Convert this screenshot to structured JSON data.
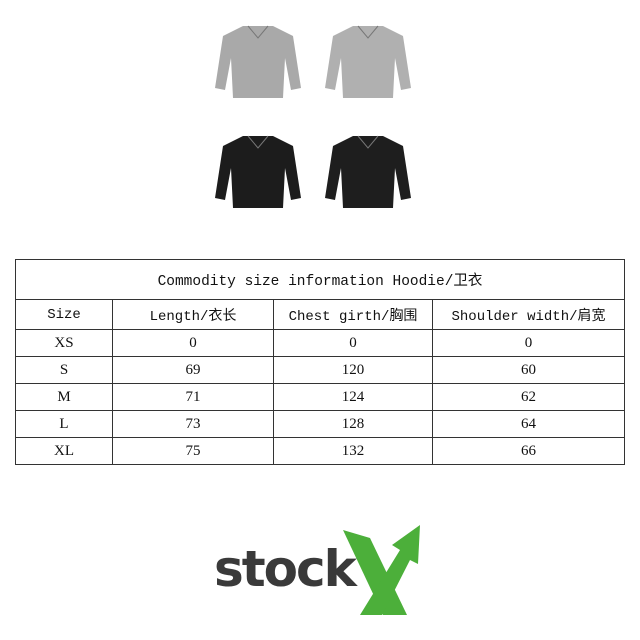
{
  "products": [
    {
      "name": "grey-hoodie-front",
      "color": "#a9a9a9"
    },
    {
      "name": "grey-hoodie-back",
      "color": "#b0b0b0"
    },
    {
      "name": "black-hoodie-front",
      "color": "#1c1c1c"
    },
    {
      "name": "black-hoodie-back",
      "color": "#1e1e1e"
    }
  ],
  "table": {
    "title": "Commodity size information Hoodie/卫衣",
    "headers": [
      "Size",
      "Length/衣长",
      "Chest girth/胸围",
      "Shoulder width/肩宽"
    ],
    "rows": [
      [
        "XS",
        "0",
        "0",
        "0"
      ],
      [
        "S",
        "69",
        "120",
        "60"
      ],
      [
        "M",
        "71",
        "124",
        "62"
      ],
      [
        "L",
        "73",
        "128",
        "64"
      ],
      [
        "XL",
        "75",
        "132",
        "66"
      ]
    ]
  },
  "logo": {
    "text": "stock",
    "accent": "#4caf3a",
    "text_color": "#3a3a3a"
  }
}
